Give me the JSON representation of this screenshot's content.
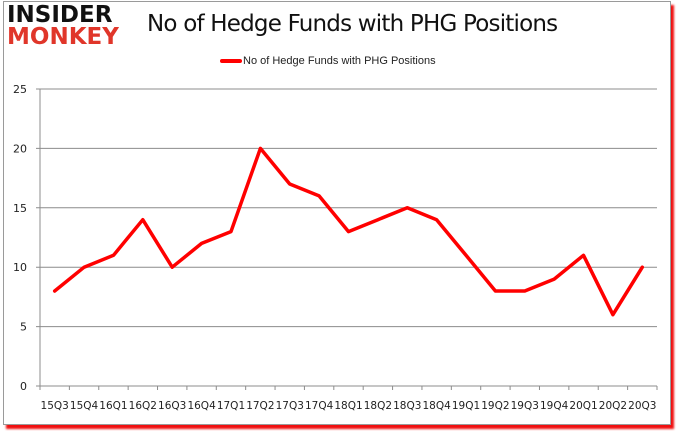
{
  "brand": {
    "line1": "INSIDER",
    "line2": "MONKEY"
  },
  "header": {
    "title": "No of Hedge Funds with PHG Positions"
  },
  "legend": {
    "label": "No of Hedge Funds with PHG Positions",
    "color": "#ff0000"
  },
  "chart_data": {
    "type": "line",
    "title": "No of Hedge Funds with PHG Positions",
    "xlabel": "",
    "ylabel": "",
    "categories": [
      "15Q3",
      "15Q4",
      "16Q1",
      "16Q2",
      "16Q3",
      "16Q4",
      "17Q1",
      "17Q2",
      "17Q3",
      "17Q4",
      "18Q1",
      "18Q2",
      "18Q3",
      "18Q4",
      "19Q1",
      "19Q2",
      "19Q3",
      "19Q4",
      "20Q1",
      "20Q2",
      "20Q3"
    ],
    "series": [
      {
        "name": "No of Hedge Funds with PHG Positions",
        "color": "#ff0000",
        "values": [
          8,
          10,
          11,
          14,
          10,
          12,
          13,
          20,
          17,
          16,
          13,
          14,
          15,
          14,
          11,
          8,
          8,
          9,
          11,
          6,
          10
        ]
      }
    ],
    "ylim": [
      0,
      25
    ],
    "yticks": [
      0,
      5,
      10,
      15,
      20,
      25
    ],
    "grid": true,
    "legend_position": "top"
  }
}
